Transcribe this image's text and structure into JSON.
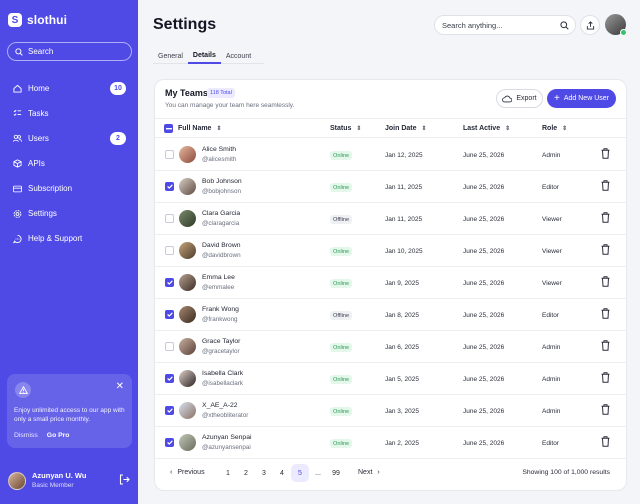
{
  "brand": {
    "name": "slothui",
    "logo_letter": "S"
  },
  "sidebar": {
    "search_placeholder": "Search",
    "items": [
      {
        "label": "Home",
        "icon": "home-icon",
        "badge": "10"
      },
      {
        "label": "Tasks",
        "icon": "tasks-icon",
        "badge": ""
      },
      {
        "label": "Users",
        "icon": "users-icon",
        "badge": "2"
      },
      {
        "label": "APIs",
        "icon": "cube-icon",
        "badge": ""
      },
      {
        "label": "Subscription",
        "icon": "card-icon",
        "badge": ""
      },
      {
        "label": "Settings",
        "icon": "gear-icon",
        "badge": ""
      },
      {
        "label": "Help & Support",
        "icon": "help-icon",
        "badge": ""
      }
    ],
    "promo": {
      "text": "Enjoy unlimited access to our app with only a small price monthly.",
      "dismiss": "Dismiss",
      "go_pro": "Go Pro"
    },
    "user": {
      "name": "Azunyan U. Wu",
      "role": "Basic Member"
    }
  },
  "header": {
    "title": "Settings",
    "search_placeholder": "Search anything..."
  },
  "tabs": [
    {
      "label": "General",
      "active": false
    },
    {
      "label": "Details",
      "active": true
    },
    {
      "label": "Account",
      "active": false
    }
  ],
  "team": {
    "title": "My Teams",
    "total_badge": "118 Total",
    "subtitle": "You can manage your team here seamlessly.",
    "export_label": "Export",
    "add_label": "Add New User",
    "columns": [
      "Full Name",
      "Status",
      "Join Date",
      "Last Active",
      "Role"
    ],
    "rows": [
      {
        "name": "Alice Smith",
        "handle": "@alicesmith",
        "status": "Online",
        "join": "Jan 12, 2025",
        "last": "June 25, 2026",
        "role": "Admin",
        "checked": false
      },
      {
        "name": "Bob Johnson",
        "handle": "@bobjohnson",
        "status": "Online",
        "join": "Jan 11, 2025",
        "last": "June 25, 2026",
        "role": "Editor",
        "checked": true
      },
      {
        "name": "Clara Garcia",
        "handle": "@claragarcia",
        "status": "Offline",
        "join": "Jan 11, 2025",
        "last": "June 25, 2026",
        "role": "Viewer",
        "checked": false
      },
      {
        "name": "David Brown",
        "handle": "@davidbrown",
        "status": "Online",
        "join": "Jan 10, 2025",
        "last": "June 25, 2026",
        "role": "Viewer",
        "checked": false
      },
      {
        "name": "Emma Lee",
        "handle": "@emmalee",
        "status": "Online",
        "join": "Jan 9, 2025",
        "last": "June 25, 2026",
        "role": "Viewer",
        "checked": true
      },
      {
        "name": "Frank Wong",
        "handle": "@frankwong",
        "status": "Offline",
        "join": "Jan 8, 2025",
        "last": "June 25, 2026",
        "role": "Editor",
        "checked": true
      },
      {
        "name": "Grace Taylor",
        "handle": "@gracetaylor",
        "status": "Online",
        "join": "Jan 6, 2025",
        "last": "June 25, 2026",
        "role": "Admin",
        "checked": false
      },
      {
        "name": "Isabella Clark",
        "handle": "@isabellaclark",
        "status": "Online",
        "join": "Jan 5, 2025",
        "last": "June 25, 2026",
        "role": "Admin",
        "checked": true
      },
      {
        "name": "X_AE_A-22",
        "handle": "@xtheobliterator",
        "status": "Online",
        "join": "Jan 3, 2025",
        "last": "June 25, 2026",
        "role": "Admin",
        "checked": true
      },
      {
        "name": "Azunyan Senpai",
        "handle": "@azunyansenpai",
        "status": "Online",
        "join": "Jan 2, 2025",
        "last": "June 25, 2026",
        "role": "Editor",
        "checked": true
      }
    ],
    "pagination": {
      "prev": "Previous",
      "next": "Next",
      "pages": [
        "1",
        "2",
        "3",
        "4",
        "5",
        "...",
        "99"
      ],
      "active_page": "5",
      "info": "Showing 100 of 1,000 results"
    }
  },
  "colors": {
    "accent": "#4f4ae6",
    "online": "#2a9b55",
    "sidebar_bg": "#4f4ae6"
  }
}
